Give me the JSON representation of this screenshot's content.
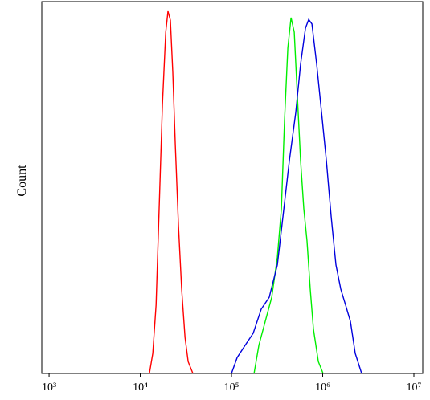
{
  "chart_data": {
    "type": "line",
    "ylabel": "Count",
    "xscale": "log",
    "xlim": [
      832,
      12500000
    ],
    "ylim": [
      0,
      100
    ],
    "xticks": [
      {
        "value": 1000,
        "label": "10³"
      },
      {
        "value": 10000,
        "label": "10⁴"
      },
      {
        "value": 100000,
        "label": "10⁵"
      },
      {
        "value": 1000000,
        "label": "10⁶"
      },
      {
        "value": 10000000,
        "label": "10⁷"
      }
    ],
    "series": [
      {
        "color": "#ff0000",
        "x": [
          12600,
          13700,
          14900,
          16100,
          17500,
          19000,
          20100,
          21400,
          22700,
          24200,
          26200,
          28400,
          30900,
          33500,
          37700
        ],
        "values": [
          0,
          5.4,
          18.4,
          44.3,
          72.4,
          91.8,
          97.4,
          95.0,
          80.9,
          61.6,
          40.0,
          22.7,
          9.7,
          3.2,
          0
        ]
      },
      {
        "color": "#00ee00",
        "x": [
          176600,
          199500,
          234500,
          276000,
          318000,
          352000,
          381000,
          414000,
          449000,
          487000,
          528000,
          572000,
          621000,
          673000,
          730000,
          792000,
          895000,
          1009000
        ],
        "values": [
          0,
          7.6,
          14.0,
          20.5,
          31.3,
          44.3,
          68.0,
          87.5,
          95.7,
          91.8,
          74.5,
          57.2,
          44.3,
          35.6,
          22.7,
          11.9,
          3.2,
          0
        ]
      },
      {
        "color": "#0000dd",
        "x": [
          100000,
          115300,
          141300,
          173000,
          211800,
          259300,
          318000,
          366000,
          431000,
          507000,
          572000,
          647000,
          702000,
          761000,
          859000,
          971000,
          1097000,
          1239000,
          1397000,
          1578000,
          1783000,
          2014000,
          2275000,
          2675000
        ],
        "values": [
          0,
          4.3,
          7.6,
          10.8,
          17.3,
          20.5,
          29.2,
          42.1,
          57.2,
          70.2,
          83.2,
          92.9,
          95.2,
          94.0,
          83.2,
          70.2,
          57.2,
          42.1,
          29.2,
          22.7,
          18.4,
          14.0,
          5.4,
          0
        ]
      }
    ]
  }
}
